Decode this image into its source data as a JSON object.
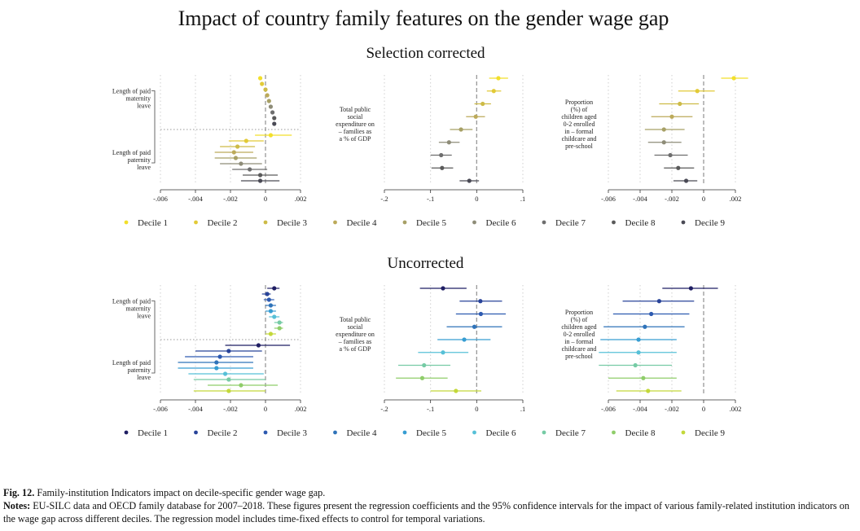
{
  "title": "Impact of country family features on the gender wage gap",
  "panels": [
    {
      "id": "top",
      "title": "Selection corrected"
    },
    {
      "id": "bottom",
      "title": "Uncorrected"
    }
  ],
  "caption": {
    "fig_label": "Fig. 12.",
    "fig_text": " Family-institution Indicators impact on decile-specific gender wage gap.",
    "notes_label": "Notes:",
    "notes_text": " EU-SILC data and OECD family database for 2007–2018. These figures present the regression coefficients and the 95% confidence intervals for the impact of various family-related institution indicators on the wage gap across different deciles. The regression model includes time-fixed effects to control for temporal variations."
  },
  "chart_data": [
    {
      "panel": "Selection corrected",
      "indicator": "Length of paid maternity leave / Length of paid paternity leave",
      "type": "scatter",
      "labels": [
        "Length of paid maternity leave",
        "Length of paid paternity leave"
      ],
      "x_ticks": [
        "-.006",
        "-.004",
        "-.002",
        "0",
        ".002"
      ],
      "xlim": [
        -0.006,
        0.002
      ],
      "grid": true,
      "groups": [
        {
          "label": "Length of paid maternity leave",
          "estimates": [
            -0.0003,
            -0.0002,
            0.0,
            0.0001,
            0.0002,
            0.0003,
            0.0004,
            0.0005,
            0.0005
          ],
          "ci_low": [
            -0.0003,
            -0.0002,
            0.0,
            0.0001,
            0.0002,
            0.0003,
            0.0004,
            0.0005,
            0.0005
          ],
          "ci_high": [
            -0.0003,
            -0.0002,
            0.0,
            0.0001,
            0.0002,
            0.0003,
            0.0004,
            0.0005,
            0.0005
          ]
        },
        {
          "label": "Length of paid paternity leave",
          "estimates": [
            0.0003,
            -0.0011,
            -0.0016,
            -0.0018,
            -0.0017,
            -0.0014,
            -0.0009,
            -0.0003,
            -0.0003
          ],
          "ci_low": [
            -0.0006,
            -0.0021,
            -0.0026,
            -0.0029,
            -0.0029,
            -0.0026,
            -0.0019,
            -0.0013,
            -0.0014
          ],
          "ci_high": [
            0.0015,
            -0.0001,
            -0.0006,
            -0.0007,
            -0.0005,
            -0.0002,
            0.0001,
            0.0007,
            0.0008
          ]
        }
      ]
    },
    {
      "panel": "Selection corrected",
      "indicator": "Total public social expenditure on families as a % of GDP",
      "type": "scatter",
      "labels": [
        "Total public social expenditure on – families as a % of GDP"
      ],
      "x_ticks": [
        "-.2",
        "-.1",
        "0",
        ".1"
      ],
      "xlim": [
        -0.2,
        0.1
      ],
      "grid": true,
      "groups": [
        {
          "label": "Total public social expenditure on – families as a % of GDP",
          "estimates": [
            0.047,
            0.037,
            0.013,
            -0.002,
            -0.034,
            -0.06,
            -0.077,
            -0.075,
            -0.016
          ],
          "ci_low": [
            0.027,
            0.022,
            -0.005,
            -0.023,
            -0.058,
            -0.082,
            -0.1,
            -0.098,
            -0.037
          ],
          "ci_high": [
            0.068,
            0.053,
            0.031,
            0.018,
            -0.009,
            -0.037,
            -0.054,
            -0.051,
            0.005
          ]
        }
      ]
    },
    {
      "panel": "Selection corrected",
      "indicator": "Proportion (%) of children aged 0-2 enrolled in formal childcare and pre-school",
      "type": "scatter",
      "labels": [
        "Proportion (%) of children aged 0-2 enrolled in – formal childcare and pre-school"
      ],
      "x_ticks": [
        "-.006",
        "-.004",
        "-.002",
        "0",
        ".002"
      ],
      "xlim": [
        -0.006,
        0.002
      ],
      "grid": true,
      "groups": [
        {
          "label": "Proportion (%) of children aged 0-2 enrolled in – formal childcare and pre-school",
          "estimates": [
            0.0019,
            -0.0004,
            -0.0015,
            -0.002,
            -0.0025,
            -0.0025,
            -0.0021,
            -0.0016,
            -0.0011
          ],
          "ci_low": [
            0.0011,
            -0.0016,
            -0.0028,
            -0.0033,
            -0.0037,
            -0.0035,
            -0.0031,
            -0.0025,
            -0.0019
          ],
          "ci_high": [
            0.0028,
            0.0007,
            -0.0003,
            -0.0007,
            -0.0012,
            -0.0014,
            -0.001,
            -0.0006,
            -0.0004
          ]
        }
      ]
    },
    {
      "panel": "Uncorrected",
      "indicator": "Length of paid maternity leave / Length of paid paternity leave",
      "type": "scatter",
      "labels": [
        "Length of paid maternity leave",
        "Length of paid paternity leave"
      ],
      "x_ticks": [
        "-.006",
        "-.004",
        "-.002",
        "0",
        ".002"
      ],
      "xlim": [
        -0.006,
        0.002
      ],
      "grid": true,
      "groups": [
        {
          "label": "Length of paid maternity leave",
          "estimates": [
            0.0005,
            0.0001,
            0.0002,
            0.0003,
            0.0003,
            0.0005,
            0.0008,
            0.0008,
            0.0003
          ],
          "ci_low": [
            0.0001,
            -0.0002,
            -0.0001,
            0.0,
            0.0,
            0.0002,
            0.0005,
            0.0005,
            0.0
          ],
          "ci_high": [
            0.0008,
            0.0003,
            0.0005,
            0.0006,
            0.0006,
            0.0008,
            0.001,
            0.001,
            0.0006
          ]
        },
        {
          "label": "Length of paid paternity leave",
          "estimates": [
            -0.0004,
            -0.0021,
            -0.0026,
            -0.0028,
            -0.0028,
            -0.0023,
            -0.0021,
            -0.0014,
            -0.0021
          ],
          "ci_low": [
            -0.0023,
            -0.004,
            -0.0046,
            -0.005,
            -0.005,
            -0.0044,
            -0.0041,
            -0.0033,
            -0.0041
          ],
          "ci_high": [
            0.0014,
            -0.0002,
            -0.0007,
            -0.0007,
            -0.0007,
            -0.0001,
            0.0,
            0.0007,
            0.0
          ]
        }
      ]
    },
    {
      "panel": "Uncorrected",
      "indicator": "Total public social expenditure on families as a % of GDP",
      "type": "scatter",
      "labels": [
        "Total public social expenditure on – families as a % of GDP"
      ],
      "x_ticks": [
        "-.2",
        "-.1",
        "0",
        ".1"
      ],
      "xlim": [
        -0.2,
        0.1
      ],
      "grid": true,
      "groups": [
        {
          "label": "Total public social expenditure on – families as a % of GDP",
          "estimates": [
            -0.073,
            0.008,
            0.009,
            -0.005,
            -0.027,
            -0.073,
            -0.114,
            -0.118,
            -0.045
          ],
          "ci_low": [
            -0.123,
            -0.037,
            -0.045,
            -0.065,
            -0.085,
            -0.127,
            -0.17,
            -0.175,
            -0.1
          ],
          "ci_high": [
            -0.022,
            0.055,
            0.063,
            0.055,
            0.03,
            -0.018,
            -0.057,
            -0.063,
            0.01
          ]
        }
      ]
    },
    {
      "panel": "Uncorrected",
      "indicator": "Proportion (%) of children aged 0-2 enrolled in formal childcare and pre-school",
      "type": "scatter",
      "labels": [
        "Proportion (%) of children aged 0-2 enrolled in – formal childcare and pre-school"
      ],
      "x_ticks": [
        "-.006",
        "-.004",
        "-.002",
        "0",
        ".002"
      ],
      "xlim": [
        -0.006,
        0.002
      ],
      "grid": true,
      "groups": [
        {
          "label": "Proportion (%) of children aged 0-2 enrolled in – formal childcare and pre-school",
          "estimates": [
            -0.0008,
            -0.0028,
            -0.0033,
            -0.0037,
            -0.0041,
            -0.0041,
            -0.0043,
            -0.0038,
            -0.0035
          ],
          "ci_low": [
            -0.0026,
            -0.0051,
            -0.0057,
            -0.0063,
            -0.0065,
            -0.0066,
            -0.0066,
            -0.006,
            -0.0055
          ],
          "ci_high": [
            0.0009,
            -0.0006,
            -0.0009,
            -0.0012,
            -0.0017,
            -0.0017,
            -0.002,
            -0.0017,
            -0.0014
          ]
        }
      ]
    }
  ],
  "legends": {
    "top": {
      "labels": [
        "Decile 1",
        "Decile 2",
        "Decile 3",
        "Decile 4",
        "Decile 5",
        "Decile 6",
        "Decile 7",
        "Decile 8",
        "Decile 9"
      ],
      "colors": [
        "#f2df2b",
        "#e2ca37",
        "#cdbb47",
        "#bcaa5a",
        "#a7a066",
        "#8e8c78",
        "#6e6e6e",
        "#5a5a5a",
        "#4a4a55"
      ]
    },
    "bottom": {
      "labels": [
        "Decile 1",
        "Decile 2",
        "Decile 3",
        "Decile 4",
        "Decile 5",
        "Decile 6",
        "Decile 7",
        "Decile 8",
        "Decile 9"
      ],
      "colors": [
        "#1f1e63",
        "#284399",
        "#2d5ab0",
        "#2f73b9",
        "#379dd2",
        "#56c0d7",
        "#76cba5",
        "#8fcd6a",
        "#c3d83a"
      ]
    }
  }
}
